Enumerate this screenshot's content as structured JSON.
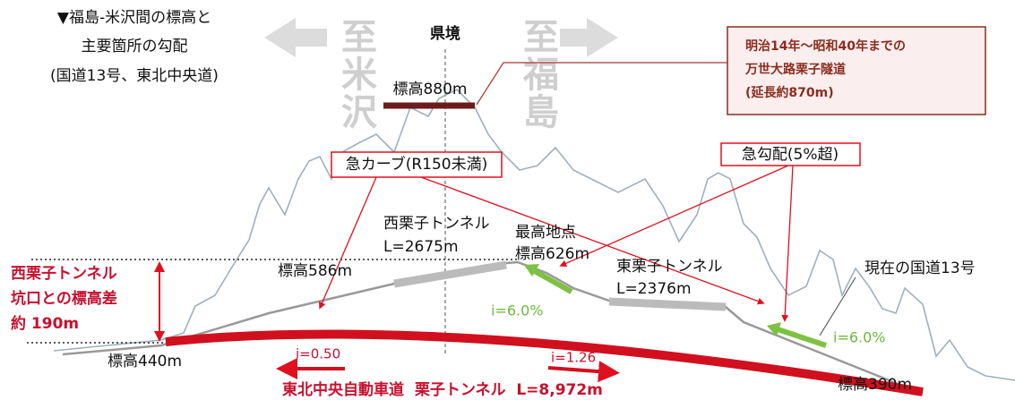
{
  "title": {
    "line1": "▼福島-米沢間の標高と",
    "line2": "主要箇所の勾配",
    "line3": "(国道13号、東北中央道)"
  },
  "direction": {
    "left": "至米沢",
    "border": "県境",
    "right": "至福島"
  },
  "old_tunnel": {
    "line1": "明治14年～昭和40年までの",
    "line2": "万世大路栗子隧道",
    "line3": "(延長約870m)",
    "elevation": "標高880m"
  },
  "callouts": {
    "curve": "急カーブ(R150未満)",
    "slope": "急勾配(5%超)"
  },
  "west_tunnel": {
    "name": "西栗子トンネル",
    "length": "L=2675m",
    "elevation": "標高586m"
  },
  "summit": {
    "line1": "最高地点",
    "line2": "標高626m"
  },
  "east_tunnel": {
    "name": "東栗子トンネル",
    "length": "L=2376m"
  },
  "route13": "現在の国道13号",
  "difference": {
    "line1": "西栗子トンネル",
    "line2": "坑口との標高差",
    "line3": "約 190m"
  },
  "gradients": {
    "west": "i=6.0%",
    "east": "i=6.0%",
    "highway_west": "i=0.50",
    "highway_east": "i=1.26"
  },
  "highway": {
    "label": "東北中央自動車道  栗子トンネル  L=8,972m",
    "start_elevation": "標高440m",
    "end_elevation": "標高390m"
  }
}
